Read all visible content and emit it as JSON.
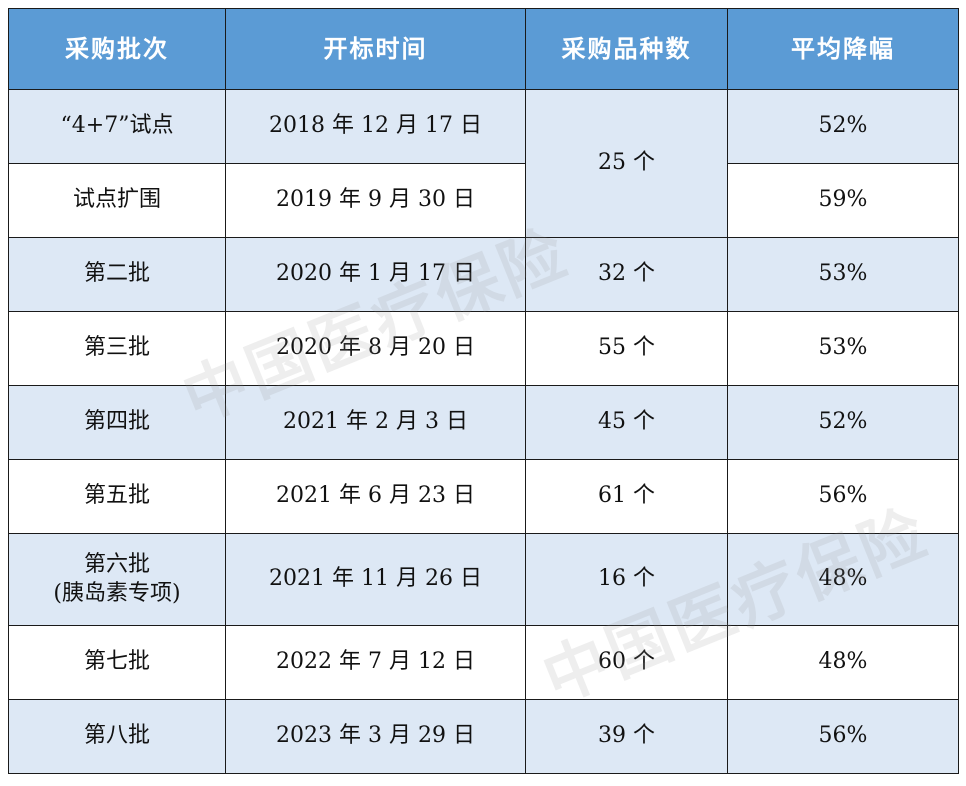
{
  "table": {
    "headers": [
      "采购批次",
      "开标时间",
      "采购品种数",
      "平均降幅"
    ],
    "rows": [
      {
        "batch": "“4+7”试点",
        "date": "2018 年 12 月 17 日",
        "count": "25 个",
        "decline": "52%"
      },
      {
        "batch": "试点扩围",
        "date": "2019 年 9 月 30 日",
        "decline": "59%"
      },
      {
        "batch": "第二批",
        "date": "2020 年 1 月 17 日",
        "count": "32 个",
        "decline": "53%"
      },
      {
        "batch": "第三批",
        "date": "2020 年 8 月 20 日",
        "count": "55 个",
        "decline": "53%"
      },
      {
        "batch": "第四批",
        "date": "2021 年 2 月 3 日",
        "count": "45 个",
        "decline": "52%"
      },
      {
        "batch": "第五批",
        "date": "2021 年 6 月 23 日",
        "count": "61 个",
        "decline": "56%"
      },
      {
        "batch": "第六批",
        "batch_note": "(胰岛素专项)",
        "date": "2021 年 11 月 26 日",
        "count": "16 个",
        "decline": "48%"
      },
      {
        "batch": "第七批",
        "date": "2022 年 7 月 12 日",
        "count": "60 个",
        "decline": "48%"
      },
      {
        "batch": "第八批",
        "date": "2023 年 3 月 29 日",
        "count": "39 个",
        "decline": "56%"
      }
    ]
  },
  "watermark": "中国医疗保险",
  "colors": {
    "header_bg": "#5b9bd5",
    "header_text": "#ffffff",
    "row_shade": "#dde8f5",
    "row_plain": "#ffffff",
    "border": "#1a1a1a"
  }
}
